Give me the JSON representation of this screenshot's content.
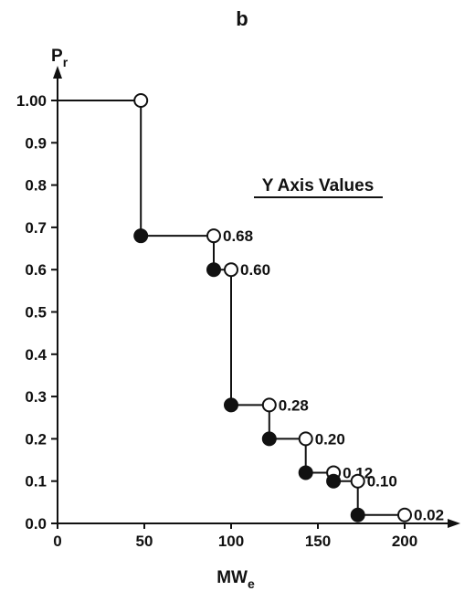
{
  "chart_data": {
    "type": "line",
    "step": true,
    "panel_label": "b",
    "ylabel": {
      "main": "P",
      "sub": "r"
    },
    "xlabel": {
      "main": "MW",
      "sub": "e"
    },
    "annotation": "Y Axis Values",
    "xlim": [
      0,
      225
    ],
    "ylim": [
      0,
      1.0
    ],
    "x_ticks": [
      "0",
      "50",
      "100",
      "150",
      "200"
    ],
    "x_tick_values": [
      0,
      50,
      100,
      150,
      200
    ],
    "y_ticks": [
      "0.0",
      "0.1",
      "0.2",
      "0.3",
      "0.4",
      "0.5",
      "0.6",
      "0.7",
      "0.8",
      "0.9",
      "1.00"
    ],
    "y_tick_values": [
      0,
      0.1,
      0.2,
      0.3,
      0.4,
      0.5,
      0.6,
      0.7,
      0.8,
      0.9,
      1.0
    ],
    "steps": [
      {
        "x_start": 0,
        "x_end": 48,
        "y": 1.0,
        "label": ""
      },
      {
        "x_start": 48,
        "x_end": 90,
        "y": 0.68,
        "label": "0.68"
      },
      {
        "x_start": 90,
        "x_end": 100,
        "y": 0.6,
        "label": "0.60"
      },
      {
        "x_start": 100,
        "x_end": 122,
        "y": 0.28,
        "label": "0.28"
      },
      {
        "x_start": 122,
        "x_end": 143,
        "y": 0.2,
        "label": "0.20"
      },
      {
        "x_start": 143,
        "x_end": 159,
        "y": 0.12,
        "label": "0.12"
      },
      {
        "x_start": 159,
        "x_end": 173,
        "y": 0.1,
        "label": "0.10"
      },
      {
        "x_start": 173,
        "x_end": 200,
        "y": 0.02,
        "label": "0.02"
      }
    ],
    "grid": false,
    "legend": "none"
  }
}
